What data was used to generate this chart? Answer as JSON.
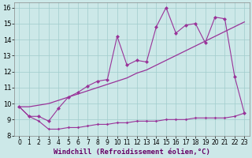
{
  "background_color": "#cce8e8",
  "grid_color": "#a0cccc",
  "line_color": "#993399",
  "xlim": [
    -0.5,
    23.5
  ],
  "ylim": [
    8,
    16.3
  ],
  "yticks": [
    8,
    9,
    10,
    11,
    12,
    13,
    14,
    15,
    16
  ],
  "xticks": [
    0,
    1,
    2,
    3,
    4,
    5,
    6,
    7,
    8,
    9,
    10,
    11,
    12,
    13,
    14,
    15,
    16,
    17,
    18,
    19,
    20,
    21,
    22,
    23
  ],
  "xlabel": "Windchill (Refroidissement éolien,°C)",
  "tick_fontsize": 5.5,
  "xlabel_fontsize": 6.5,
  "line_flat_x": [
    0,
    1,
    2,
    3,
    4,
    5,
    6,
    7,
    8,
    9,
    10,
    11,
    12,
    13,
    14,
    15,
    16,
    17,
    18,
    19,
    20,
    21,
    22,
    23
  ],
  "line_flat_y": [
    9.8,
    9.2,
    8.9,
    8.4,
    8.4,
    8.5,
    8.5,
    8.6,
    8.7,
    8.7,
    8.8,
    8.8,
    8.9,
    8.9,
    8.9,
    9.0,
    9.0,
    9.0,
    9.1,
    9.1,
    9.1,
    9.1,
    9.2,
    9.4
  ],
  "line_smooth_x": [
    0,
    1,
    2,
    3,
    4,
    5,
    6,
    7,
    8,
    9,
    10,
    11,
    12,
    13,
    14,
    15,
    16,
    17,
    18,
    19,
    20,
    21,
    22,
    23
  ],
  "line_smooth_y": [
    9.8,
    9.8,
    9.9,
    10.0,
    10.2,
    10.4,
    10.6,
    10.8,
    11.0,
    11.2,
    11.4,
    11.6,
    11.9,
    12.1,
    12.4,
    12.7,
    13.0,
    13.3,
    13.6,
    13.9,
    14.2,
    14.5,
    14.8,
    15.1
  ],
  "line_jagged_x": [
    0,
    1,
    2,
    3,
    4,
    5,
    6,
    7,
    8,
    9,
    10,
    11,
    12,
    13,
    14,
    15,
    16,
    17,
    18,
    19,
    20,
    21,
    22,
    23
  ],
  "line_jagged_y": [
    9.8,
    9.2,
    9.2,
    8.9,
    9.7,
    10.4,
    10.7,
    11.1,
    11.4,
    11.5,
    14.2,
    12.4,
    12.7,
    12.6,
    14.8,
    16.0,
    14.4,
    14.9,
    15.0,
    13.8,
    15.4,
    15.3,
    11.7,
    9.4
  ]
}
